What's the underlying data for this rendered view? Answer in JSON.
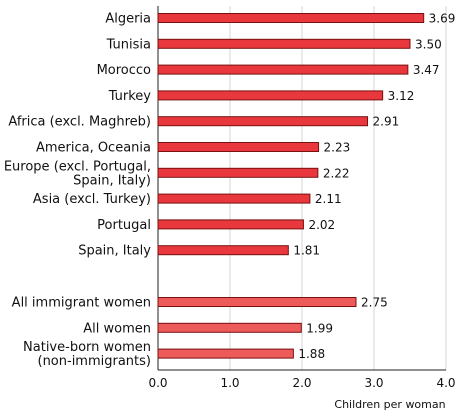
{
  "chart_data": {
    "type": "bar",
    "orientation": "horizontal",
    "title": "",
    "xlabel": "Children per woman",
    "ylabel": "",
    "xlim": [
      0,
      4
    ],
    "xticks": [
      "0.0",
      "1.0",
      "2.0",
      "3.0",
      "4.0"
    ],
    "grid": true,
    "bar_color": "#e8383d",
    "bar_color_summary": "#ec5a5a",
    "bar_edge_color": "#7a1010",
    "groups": [
      {
        "name": "by-origin",
        "bars": [
          {
            "label_lines": [
              "Algeria"
            ],
            "value": 3.69,
            "value_label": "3.69"
          },
          {
            "label_lines": [
              "Tunisia"
            ],
            "value": 3.5,
            "value_label": "3.50"
          },
          {
            "label_lines": [
              "Morocco"
            ],
            "value": 3.47,
            "value_label": "3.47"
          },
          {
            "label_lines": [
              "Turkey"
            ],
            "value": 3.12,
            "value_label": "3.12"
          },
          {
            "label_lines": [
              "Africa (excl. Maghreb)"
            ],
            "value": 2.91,
            "value_label": "2.91"
          },
          {
            "label_lines": [
              "America, Oceania"
            ],
            "value": 2.23,
            "value_label": "2.23"
          },
          {
            "label_lines": [
              "Europe (excl. Portugal,",
              "Spain, Italy)"
            ],
            "value": 2.22,
            "value_label": "2.22"
          },
          {
            "label_lines": [
              "Asia (excl. Turkey)"
            ],
            "value": 2.11,
            "value_label": "2.11"
          },
          {
            "label_lines": [
              "Portugal"
            ],
            "value": 2.02,
            "value_label": "2.02"
          },
          {
            "label_lines": [
              "Spain, Italy"
            ],
            "value": 1.81,
            "value_label": "1.81"
          }
        ]
      },
      {
        "name": "summary",
        "bars": [
          {
            "label_lines": [
              "All immigrant women"
            ],
            "value": 2.75,
            "value_label": "2.75"
          },
          {
            "label_lines": [
              "All women"
            ],
            "value": 1.99,
            "value_label": "1.99"
          },
          {
            "label_lines": [
              "Native-born women",
              "(non-immigrants)"
            ],
            "value": 1.88,
            "value_label": "1.88"
          }
        ]
      }
    ]
  }
}
